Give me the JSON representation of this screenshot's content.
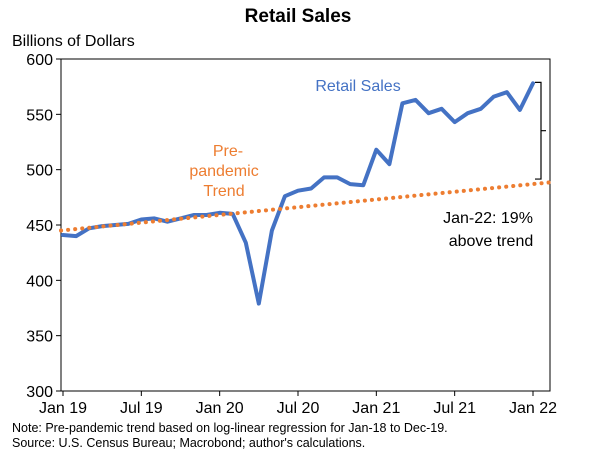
{
  "chart_data": {
    "type": "line",
    "title": "Retail Sales",
    "ylabel": "Billions of Dollars",
    "ylim": [
      300,
      600
    ],
    "yticks": [
      300,
      350,
      400,
      450,
      500,
      550,
      600
    ],
    "xlim": [
      "2019-01",
      "2022-01"
    ],
    "xtick_labels": [
      "Jan 19",
      "Jul 19",
      "Jan 20",
      "Jul 20",
      "Jan 21",
      "Jul 21",
      "Jan 22"
    ],
    "xtick_dates": [
      "2019-01",
      "2019-07",
      "2020-01",
      "2020-07",
      "2021-01",
      "2021-07",
      "2022-01"
    ],
    "grid": false,
    "series": [
      {
        "name": "Retail Sales",
        "color": "#4472C4",
        "style": "solid",
        "x": [
          "2019-01",
          "2019-02",
          "2019-03",
          "2019-04",
          "2019-05",
          "2019-06",
          "2019-07",
          "2019-08",
          "2019-09",
          "2019-10",
          "2019-11",
          "2019-12",
          "2020-01",
          "2020-02",
          "2020-03",
          "2020-04",
          "2020-05",
          "2020-06",
          "2020-07",
          "2020-08",
          "2020-09",
          "2020-10",
          "2020-11",
          "2020-12",
          "2021-01",
          "2021-02",
          "2021-03",
          "2021-04",
          "2021-05",
          "2021-06",
          "2021-07",
          "2021-08",
          "2021-09",
          "2021-10",
          "2021-11",
          "2021-12",
          "2022-01"
        ],
        "values": [
          441,
          440,
          447,
          449,
          450,
          451,
          455,
          456,
          453,
          456,
          459,
          459,
          461,
          460,
          434,
          379,
          445,
          476,
          481,
          483,
          493,
          493,
          487,
          486,
          518,
          505,
          560,
          563,
          551,
          555,
          543,
          551,
          555,
          566,
          570,
          554,
          578
        ]
      },
      {
        "name": "Pre-pandemic Trend",
        "color": "#ED7D31",
        "style": "dotted",
        "x": [
          "2019-01",
          "2022-01"
        ],
        "values": [
          445,
          487
        ]
      }
    ],
    "annotations": {
      "series_label": "Retail Sales",
      "trend_label_lines": [
        "Pre-",
        "pandemic",
        "Trend"
      ],
      "bracket_label_lines": [
        "Jan-22: 19%",
        "above trend"
      ]
    }
  },
  "notes": {
    "line1": "Note: Pre-pandemic trend based on log-linear regression for Jan-18 to Dec-19.",
    "line2": "Source: U.S. Census Bureau; Macrobond; author's calculations."
  }
}
